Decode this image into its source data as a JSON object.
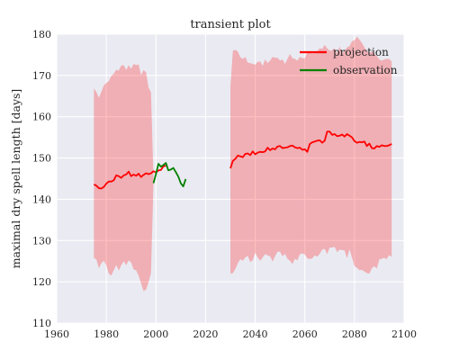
{
  "chart_data": {
    "type": "line",
    "title": "transient plot",
    "xlabel": "",
    "ylabel": "maximal dry spell length [days]",
    "xlim": [
      1960,
      2100
    ],
    "ylim": [
      110,
      180
    ],
    "xticks": [
      "1960",
      "1980",
      "2000",
      "2020",
      "2040",
      "2060",
      "2080",
      "2100"
    ],
    "yticks": [
      "110",
      "120",
      "130",
      "140",
      "150",
      "160",
      "170",
      "180"
    ],
    "grid": true,
    "legend_position": "top-right",
    "background_color": "#eaeaf2",
    "series": [
      {
        "name": "projection",
        "color": "#ff0000",
        "segments": [
          {
            "x": [
              1975,
              1976,
              1977,
              1978,
              1979,
              1980,
              1981,
              1982,
              1983,
              1984,
              1985,
              1986,
              1987,
              1988,
              1989,
              1990,
              1991,
              1992,
              1993,
              1994,
              1995,
              1996,
              1997,
              1998,
              1999,
              2000,
              2001,
              2002,
              2003,
              2004
            ],
            "y": [
              143.6,
              143.3,
              142.7,
              142.6,
              143.0,
              143.8,
              144.3,
              144.3,
              144.6,
              145.8,
              145.6,
              145.2,
              145.8,
              146.0,
              146.7,
              145.6,
              146.0,
              145.7,
              146.2,
              145.4,
              145.9,
              146.3,
              146.1,
              146.3,
              146.8,
              146.5,
              147.0,
              147.1,
              148.0,
              148.1
            ]
          },
          {
            "x": [
              2030,
              2031,
              2032,
              2033,
              2034,
              2035,
              2036,
              2037,
              2038,
              2039,
              2040,
              2041,
              2042,
              2043,
              2044,
              2045,
              2046,
              2047,
              2048,
              2049,
              2050,
              2051,
              2052,
              2053,
              2054,
              2055,
              2056,
              2057,
              2058,
              2059,
              2060,
              2061,
              2062,
              2063,
              2064,
              2065,
              2066,
              2067,
              2068,
              2069,
              2070,
              2071,
              2072,
              2073,
              2074,
              2075,
              2076,
              2077,
              2078,
              2079,
              2080,
              2081,
              2082,
              2083,
              2084,
              2085,
              2086,
              2087,
              2088,
              2089,
              2090,
              2091,
              2092,
              2093,
              2094,
              2095
            ],
            "y": [
              147.5,
              149.3,
              149.8,
              150.6,
              150.4,
              150.2,
              151.0,
              151.1,
              150.7,
              151.6,
              150.9,
              151.3,
              151.5,
              151.4,
              151.6,
              152.5,
              151.9,
              152.3,
              152.1,
              152.8,
              152.9,
              152.4,
              152.5,
              152.6,
              152.9,
              153.0,
              152.6,
              152.4,
              152.5,
              152.0,
              152.1,
              151.5,
              153.4,
              153.8,
              154.0,
              154.2,
              154.3,
              153.7,
              154.2,
              156.4,
              156.4,
              155.6,
              155.8,
              155.3,
              155.4,
              155.7,
              155.2,
              155.8,
              155.4,
              155.0,
              154.1,
              153.7,
              153.9,
              153.8,
              154.0,
              152.9,
              153.5,
              152.4,
              152.3,
              152.9,
              152.7,
              153.1,
              152.9,
              152.9,
              153.1,
              153.4
            ]
          }
        ],
        "band": {
          "segments": [
            {
              "x": [
                1975,
                1976,
                1977,
                1978,
                1979,
                1980,
                1981,
                1982,
                1983,
                1984,
                1985,
                1986,
                1987,
                1988,
                1989,
                1990,
                1991,
                1992,
                1993,
                1994,
                1995,
                1996,
                1997,
                1998,
                1999
              ],
              "upper": [
                166.9,
                166.0,
                164.6,
                166.1,
                167.6,
                168.2,
                168.6,
                169.9,
                170.4,
                171.4,
                171.2,
                172.4,
                172.5,
                171.3,
                172.5,
                171.6,
                172.8,
                172.5,
                172.7,
                170.1,
                171.3,
                170.8,
                167.1,
                165.9,
                145.2
              ],
              "lower": [
                125.8,
                125.4,
                123.3,
                124.5,
                125.1,
                124.0,
                122.0,
                121.5,
                122.8,
                124.1,
                122.7,
                124.0,
                125.0,
                124.0,
                125.2,
                124.7,
                123.0,
                122.8,
                121.5,
                119.6,
                117.8,
                118.1,
                119.9,
                122.1,
                144.0
              ]
            },
            {
              "x": [
                2030,
                2031,
                2032,
                2033,
                2034,
                2035,
                2036,
                2037,
                2038,
                2039,
                2040,
                2041,
                2042,
                2043,
                2044,
                2045,
                2046,
                2047,
                2048,
                2049,
                2050,
                2051,
                2052,
                2053,
                2054,
                2055,
                2056,
                2057,
                2058,
                2059,
                2060,
                2061,
                2062,
                2063,
                2064,
                2065,
                2066,
                2067,
                2068,
                2069,
                2070,
                2071,
                2072,
                2073,
                2074,
                2075,
                2076,
                2077,
                2078,
                2079,
                2080,
                2081,
                2082,
                2083,
                2084,
                2085,
                2086,
                2087,
                2088,
                2089,
                2090,
                2091,
                2092,
                2093,
                2094,
                2095
              ],
              "upper": [
                167.2,
                176.0,
                176.2,
                175.8,
                174.4,
                174.0,
                174.5,
                173.1,
                173.0,
                172.8,
                172.6,
                173.3,
                173.4,
                172.3,
                173.9,
                173.0,
                173.6,
                174.5,
                174.3,
                174.3,
                173.6,
                173.9,
                172.8,
                174.0,
                175.2,
                174.2,
                174.0,
                173.6,
                174.5,
                174.2,
                174.2,
                175.6,
                175.9,
                175.2,
                175.7,
                175.9,
                176.6,
                176.4,
                177.4,
                176.6,
                176.0,
                176.1,
                176.6,
                175.4,
                177.0,
                175.4,
                176.0,
                176.8,
                177.1,
                178.3,
                178.5,
                179.4,
                178.7,
                177.9,
                176.8,
                176.0,
                175.4,
                175.9,
                175.4,
                174.7,
                173.9,
                173.6,
                173.9,
                174.0,
                174.0,
                173.4
              ],
              "lower": [
                122.0,
                122.1,
                123.1,
                124.5,
                125.5,
                125.1,
                125.9,
                126.3,
                124.8,
                125.2,
                127.0,
                125.9,
                125.1,
                125.9,
                126.7,
                126.4,
                126.2,
                124.9,
                126.2,
                127.3,
                127.3,
                126.2,
                126.8,
                125.6,
                125.1,
                124.3,
                125.6,
                125.2,
                126.7,
                126.9,
                126.6,
                125.7,
                125.5,
                125.7,
                126.4,
                126.1,
                126.8,
                127.8,
                128.0,
                126.7,
                128.3,
                128.3,
                128.5,
                127.2,
                127.8,
                127.7,
                127.6,
                125.7,
                127.9,
                125.9,
                123.8,
                123.4,
                122.8,
                122.9,
                122.5,
                122.1,
                122.0,
                123.3,
                123.8,
                123.2,
                125.4,
                125.6,
                125.8,
                125.5,
                126.5,
                126.0
              ]
            }
          ]
        }
      },
      {
        "name": "observation",
        "color": "#008000",
        "segments": [
          {
            "x": [
              1999,
              2000,
              2001,
              2002,
              2003,
              2004,
              2005,
              2006,
              2007,
              2008,
              2009,
              2010,
              2011,
              2012
            ],
            "y": [
              143.9,
              146.1,
              148.6,
              147.9,
              148.3,
              148.8,
              147.0,
              147.2,
              147.6,
              146.6,
              145.5,
              143.9,
              143.1,
              144.9
            ]
          }
        ]
      }
    ]
  }
}
